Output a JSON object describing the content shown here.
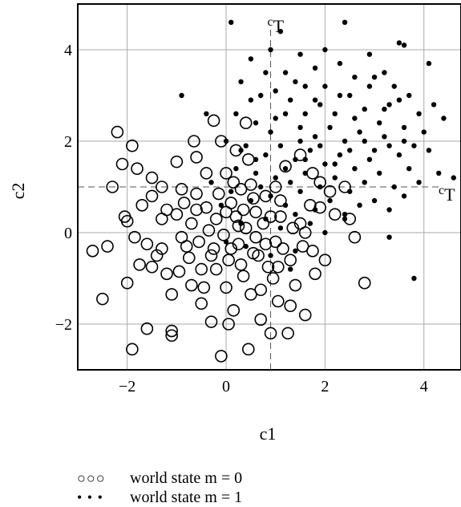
{
  "chart_data": {
    "type": "scatter",
    "xlabel": "c1",
    "ylabel": "c2",
    "xlim": [
      -3,
      4.75
    ],
    "ylim": [
      -3,
      5.0
    ],
    "xticks": [
      -2,
      0,
      2,
      4
    ],
    "yticks": [
      -2,
      0,
      2,
      4
    ],
    "xtick_labels": [
      "−2",
      "0",
      "2",
      "4"
    ],
    "ytick_labels": [
      "−2",
      "0",
      "2",
      "4"
    ],
    "grid": true,
    "thresholds": {
      "vertical": {
        "value": 0.9,
        "label_main": "c",
        "label_sub": "T"
      },
      "horizontal": {
        "value": 1.0,
        "label_main": "c",
        "label_sub": "T"
      }
    },
    "legend_placement": "below",
    "series": [
      {
        "name": "world state m = 0",
        "marker": "open-circle",
        "points": [
          [
            -2.7,
            -0.4
          ],
          [
            -2.5,
            -1.45
          ],
          [
            -2.2,
            2.2
          ],
          [
            -2.1,
            1.5
          ],
          [
            -1.9,
            -2.55
          ],
          [
            -2.05,
            0.35
          ],
          [
            -2.0,
            0.25
          ],
          [
            -1.85,
            -0.1
          ],
          [
            -1.75,
            -0.7
          ],
          [
            -1.6,
            -2.1
          ],
          [
            -1.5,
            0.8
          ],
          [
            -1.4,
            -0.5
          ],
          [
            -1.3,
            1.0
          ],
          [
            -1.2,
            -0.9
          ],
          [
            -1.1,
            -1.35
          ],
          [
            -1.1,
            -2.15
          ],
          [
            -1.1,
            -2.25
          ],
          [
            -1.0,
            0.4
          ],
          [
            -0.9,
            0.95
          ],
          [
            -0.8,
            -0.3
          ],
          [
            -0.7,
            0.2
          ],
          [
            -0.6,
            1.65
          ],
          [
            -0.5,
            -0.8
          ],
          [
            -0.4,
            0.55
          ],
          [
            -0.3,
            -1.95
          ],
          [
            -0.25,
            2.45
          ],
          [
            -0.2,
            0.3
          ],
          [
            -0.1,
            -2.7
          ],
          [
            -0.05,
            -0.05
          ],
          [
            0.0,
            1.3
          ],
          [
            0.05,
            -0.6
          ],
          [
            0.1,
            0.65
          ],
          [
            0.15,
            -1.7
          ],
          [
            0.2,
            1.8
          ],
          [
            0.25,
            -0.25
          ],
          [
            0.3,
            0.95
          ],
          [
            0.35,
            -0.95
          ],
          [
            0.4,
            0.1
          ],
          [
            0.45,
            -2.55
          ],
          [
            0.5,
            1.05
          ],
          [
            0.55,
            -0.45
          ],
          [
            0.6,
            0.45
          ],
          [
            0.7,
            -1.25
          ],
          [
            0.8,
            0.8
          ],
          [
            0.9,
            -2.2
          ],
          [
            1.0,
            -0.2
          ],
          [
            1.05,
            -1.5
          ],
          [
            1.1,
            0.35
          ],
          [
            1.2,
            1.45
          ],
          [
            1.3,
            -0.6
          ],
          [
            1.4,
            -1.15
          ],
          [
            1.5,
            0.2
          ],
          [
            1.6,
            -1.8
          ],
          [
            1.7,
            0.6
          ],
          [
            1.8,
            -0.9
          ],
          [
            1.9,
            0.55
          ],
          [
            2.0,
            -0.6
          ],
          [
            2.2,
            0.4
          ],
          [
            2.6,
            -0.1
          ],
          [
            2.8,
            -1.1
          ],
          [
            -2.0,
            -1.1
          ],
          [
            -1.7,
            0.6
          ],
          [
            -1.5,
            -0.75
          ],
          [
            -1.3,
            0.3
          ],
          [
            -0.9,
            -0.1
          ],
          [
            -0.7,
            -1.15
          ],
          [
            -0.6,
            0.5
          ],
          [
            -0.4,
            1.3
          ],
          [
            -0.3,
            -0.5
          ],
          [
            -0.15,
            0.85
          ],
          [
            0.0,
            -1.2
          ],
          [
            0.2,
            0.35
          ],
          [
            0.3,
            -0.7
          ],
          [
            0.45,
            1.6
          ],
          [
            0.6,
            -0.1
          ],
          [
            0.75,
            0.2
          ],
          [
            0.85,
            -0.75
          ],
          [
            1.0,
            1.0
          ],
          [
            1.15,
            -0.35
          ],
          [
            1.35,
            0.1
          ],
          [
            1.55,
            -0.3
          ],
          [
            -2.3,
            1.0
          ],
          [
            -1.0,
            1.55
          ],
          [
            -0.5,
            -1.55
          ],
          [
            0.1,
            -0.35
          ],
          [
            0.5,
            -1.35
          ],
          [
            0.95,
            -1.0
          ],
          [
            1.25,
            -2.2
          ],
          [
            -0.85,
            0.65
          ],
          [
            -0.2,
            -0.8
          ],
          [
            0.35,
            0.5
          ],
          [
            0.65,
            -0.5
          ],
          [
            -0.55,
            -0.2
          ],
          [
            0.15,
            1.1
          ],
          [
            -1.2,
            0.5
          ],
          [
            1.75,
            1.3
          ],
          [
            -0.35,
            0.05
          ],
          [
            0.8,
            -0.25
          ],
          [
            1.1,
            0.7
          ],
          [
            -0.75,
            -0.55
          ],
          [
            -1.9,
            1.9
          ],
          [
            -1.5,
            1.2
          ],
          [
            -0.1,
            2.0
          ],
          [
            0.4,
            2.4
          ],
          [
            1.5,
            1.7
          ],
          [
            1.9,
            1.1
          ],
          [
            2.4,
            1.0
          ],
          [
            -1.6,
            -0.25
          ],
          [
            0.05,
            -2.0
          ],
          [
            0.7,
            -1.9
          ],
          [
            1.3,
            -1.6
          ],
          [
            -0.45,
            -1.2
          ],
          [
            -0.95,
            -0.85
          ],
          [
            -0.25,
            -0.35
          ],
          [
            0.25,
            0.15
          ],
          [
            0.55,
            0.75
          ],
          [
            0.9,
            0.35
          ],
          [
            1.05,
            -0.75
          ],
          [
            0.0,
            0.45
          ],
          [
            -0.6,
            0.85
          ],
          [
            -1.3,
            -0.35
          ],
          [
            1.6,
            0.0
          ],
          [
            2.1,
            0.9
          ],
          [
            -2.4,
            -0.3
          ],
          [
            -1.8,
            1.4
          ],
          [
            -0.65,
            2.0
          ],
          [
            1.75,
            -0.4
          ],
          [
            2.5,
            0.3
          ]
        ]
      },
      {
        "name": "world state m = 1",
        "marker": "filled-dot",
        "points": [
          [
            0.1,
            4.6
          ],
          [
            2.4,
            4.6
          ],
          [
            3.5,
            4.15
          ],
          [
            3.6,
            4.1
          ],
          [
            4.1,
            3.7
          ],
          [
            4.4,
            2.5
          ],
          [
            4.6,
            1.2
          ],
          [
            3.8,
            -1.0
          ],
          [
            3.3,
            -0.1
          ],
          [
            2.4,
            0.4
          ],
          [
            1.4,
            -0.4
          ],
          [
            -0.9,
            3.0
          ],
          [
            -0.4,
            2.6
          ],
          [
            0.5,
            3.8
          ],
          [
            0.9,
            4.0
          ],
          [
            1.2,
            3.5
          ],
          [
            1.5,
            3.9
          ],
          [
            1.8,
            3.6
          ],
          [
            2.0,
            3.2
          ],
          [
            2.3,
            3.7
          ],
          [
            2.6,
            3.4
          ],
          [
            2.9,
            3.9
          ],
          [
            3.2,
            3.5
          ],
          [
            3.4,
            3.2
          ],
          [
            3.7,
            3.0
          ],
          [
            3.9,
            2.6
          ],
          [
            4.0,
            2.2
          ],
          [
            0.3,
            3.3
          ],
          [
            0.7,
            3.0
          ],
          [
            1.0,
            3.1
          ],
          [
            1.3,
            2.9
          ],
          [
            1.6,
            3.2
          ],
          [
            1.9,
            2.8
          ],
          [
            2.2,
            2.6
          ],
          [
            2.5,
            3.0
          ],
          [
            2.8,
            2.7
          ],
          [
            3.1,
            2.4
          ],
          [
            3.3,
            2.8
          ],
          [
            3.6,
            2.3
          ],
          [
            3.8,
            1.9
          ],
          [
            4.1,
            1.8
          ],
          [
            4.3,
            1.3
          ],
          [
            0.2,
            2.6
          ],
          [
            0.6,
            2.4
          ],
          [
            0.9,
            2.2
          ],
          [
            1.2,
            2.6
          ],
          [
            1.5,
            2.3
          ],
          [
            1.8,
            2.1
          ],
          [
            2.1,
            2.3
          ],
          [
            2.4,
            2.0
          ],
          [
            2.7,
            2.2
          ],
          [
            3.0,
            1.8
          ],
          [
            3.2,
            2.1
          ],
          [
            3.5,
            1.7
          ],
          [
            3.7,
            1.4
          ],
          [
            3.9,
            1.1
          ],
          [
            0.0,
            2.0
          ],
          [
            0.4,
            1.9
          ],
          [
            0.8,
            1.7
          ],
          [
            1.1,
            1.9
          ],
          [
            1.4,
            1.6
          ],
          [
            1.7,
            1.8
          ],
          [
            2.0,
            1.5
          ],
          [
            2.3,
            1.7
          ],
          [
            2.6,
            1.4
          ],
          [
            2.9,
            1.6
          ],
          [
            3.1,
            1.3
          ],
          [
            3.4,
            1.0
          ],
          [
            3.6,
            0.8
          ],
          [
            0.2,
            1.4
          ],
          [
            0.6,
            1.3
          ],
          [
            1.0,
            1.2
          ],
          [
            1.3,
            1.1
          ],
          [
            1.6,
            1.3
          ],
          [
            1.9,
            1.0
          ],
          [
            2.2,
            1.2
          ],
          [
            2.5,
            0.9
          ],
          [
            2.8,
            1.1
          ],
          [
            3.0,
            0.7
          ],
          [
            3.3,
            0.5
          ],
          [
            0.1,
            0.9
          ],
          [
            0.5,
            0.7
          ],
          [
            0.9,
            0.8
          ],
          [
            1.2,
            0.6
          ],
          [
            1.5,
            0.9
          ],
          [
            1.8,
            0.5
          ],
          [
            2.1,
            0.7
          ],
          [
            2.4,
            0.3
          ],
          [
            2.7,
            0.6
          ],
          [
            0.3,
            0.2
          ],
          [
            0.8,
            0.3
          ],
          [
            1.1,
            0.1
          ],
          [
            1.4,
            0.4
          ],
          [
            1.7,
            0.2
          ],
          [
            2.0,
            0.0
          ],
          [
            -0.3,
            1.1
          ],
          [
            -0.1,
            0.6
          ],
          [
            0.0,
            -0.2
          ],
          [
            0.4,
            -0.3
          ],
          [
            0.9,
            -0.5
          ],
          [
            1.3,
            -0.8
          ],
          [
            0.7,
            1.0
          ],
          [
            1.6,
            2.6
          ],
          [
            2.9,
            3.2
          ],
          [
            3.2,
            2.7
          ],
          [
            2.0,
            4.0
          ],
          [
            1.1,
            4.4
          ],
          [
            0.8,
            3.5
          ],
          [
            3.5,
            2.9
          ],
          [
            4.2,
            2.8
          ],
          [
            2.6,
            2.5
          ],
          [
            1.8,
            2.9
          ],
          [
            1.0,
            2.5
          ],
          [
            0.5,
            2.9
          ],
          [
            3.0,
            3.4
          ],
          [
            2.3,
            3.0
          ],
          [
            1.4,
            3.3
          ],
          [
            1.6,
            1.6
          ],
          [
            2.5,
            1.8
          ],
          [
            3.3,
            1.9
          ],
          [
            1.2,
            1.4
          ],
          [
            2.2,
            1.5
          ],
          [
            0.6,
            1.6
          ],
          [
            1.9,
            1.9
          ],
          [
            2.8,
            2.0
          ],
          [
            3.6,
            2.0
          ],
          [
            0.3,
            1.8
          ],
          [
            1.5,
            2.0
          ]
        ]
      }
    ]
  },
  "legend": {
    "items": [
      {
        "glyph": "○○○",
        "label": "world state m = 0"
      },
      {
        "glyph": "• • •",
        "label": "world state m = 1"
      }
    ]
  }
}
